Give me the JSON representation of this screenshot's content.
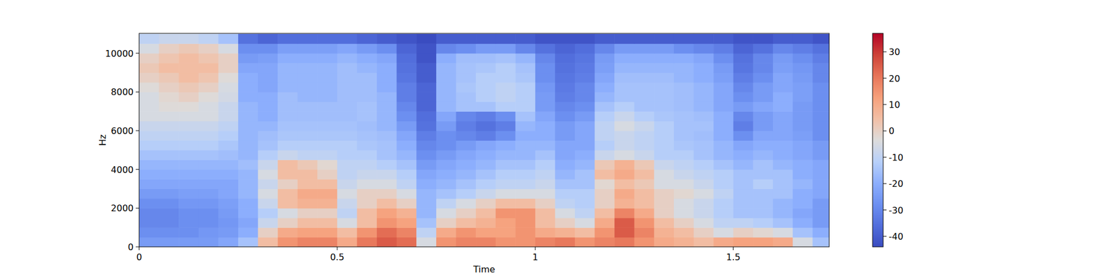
{
  "chart_data": {
    "type": "heatmap",
    "x_label": "Time",
    "y_label": "Hz",
    "xlim": [
      0,
      1.742
    ],
    "ylim": [
      0,
      11025
    ],
    "xticks": [
      0,
      0.5,
      1,
      1.5
    ],
    "yticks": [
      0,
      2000,
      4000,
      6000,
      8000,
      10000
    ],
    "zlim": [
      -44,
      37
    ],
    "zticks": [
      -40,
      -30,
      -20,
      -10,
      0,
      10,
      20,
      30
    ],
    "x": [
      0.025,
      0.075,
      0.125,
      0.175,
      0.225,
      0.275,
      0.325,
      0.375,
      0.425,
      0.475,
      0.525,
      0.575,
      0.625,
      0.675,
      0.725,
      0.775,
      0.825,
      0.875,
      0.925,
      0.975,
      1.025,
      1.075,
      1.125,
      1.175,
      1.225,
      1.275,
      1.325,
      1.375,
      1.425,
      1.475,
      1.525,
      1.575,
      1.625,
      1.675,
      1.725
    ],
    "y": [
      250,
      750,
      1250,
      1750,
      2250,
      2750,
      3250,
      3750,
      4250,
      4750,
      5250,
      5750,
      6250,
      6750,
      7250,
      7750,
      8250,
      8750,
      9250,
      9750,
      10250,
      10750
    ],
    "values": [
      [
        -25,
        -25,
        -25,
        -25,
        -22,
        -15,
        5,
        15,
        18,
        18,
        10,
        20,
        25,
        22,
        -5,
        15,
        18,
        18,
        15,
        15,
        18,
        20,
        15,
        18,
        20,
        15,
        10,
        8,
        5,
        10,
        12,
        12,
        10,
        -5,
        -15
      ],
      [
        -28,
        -28,
        -28,
        -26,
        -25,
        -20,
        0,
        10,
        12,
        12,
        5,
        15,
        22,
        18,
        -10,
        10,
        15,
        12,
        12,
        15,
        10,
        8,
        5,
        15,
        25,
        18,
        8,
        5,
        0,
        -5,
        0,
        -2,
        -5,
        -15,
        -20
      ],
      [
        -30,
        -30,
        -28,
        -28,
        -26,
        -22,
        -8,
        0,
        5,
        5,
        -5,
        5,
        15,
        12,
        -15,
        0,
        5,
        8,
        12,
        15,
        5,
        0,
        -5,
        10,
        25,
        15,
        5,
        0,
        -5,
        -10,
        -10,
        -12,
        -15,
        -20,
        -25
      ],
      [
        -30,
        -30,
        -28,
        -28,
        -25,
        -20,
        -12,
        -5,
        0,
        0,
        -10,
        5,
        12,
        8,
        -18,
        -5,
        0,
        5,
        15,
        15,
        5,
        -5,
        -10,
        5,
        18,
        10,
        0,
        -5,
        -8,
        -12,
        -15,
        -15,
        -18,
        -22,
        -25
      ],
      [
        -28,
        -28,
        -26,
        -26,
        -24,
        -20,
        -8,
        5,
        8,
        8,
        -8,
        0,
        5,
        0,
        -18,
        -10,
        -5,
        0,
        5,
        5,
        0,
        -10,
        -12,
        0,
        8,
        5,
        0,
        -5,
        -8,
        -12,
        -15,
        -15,
        -18,
        -20,
        -25
      ],
      [
        -25,
        -25,
        -24,
        -24,
        -22,
        -18,
        -5,
        5,
        10,
        10,
        -5,
        0,
        0,
        -5,
        -18,
        -15,
        -12,
        -8,
        -5,
        -5,
        -5,
        -12,
        -12,
        0,
        10,
        5,
        0,
        -2,
        -5,
        -10,
        -15,
        -15,
        -15,
        -20,
        -22
      ],
      [
        -22,
        -22,
        -22,
        -22,
        -22,
        -18,
        -8,
        0,
        5,
        5,
        -8,
        -5,
        -5,
        -10,
        -20,
        -18,
        -15,
        -12,
        -10,
        -10,
        -8,
        -15,
        -15,
        -2,
        5,
        2,
        -5,
        -5,
        -8,
        -12,
        -15,
        -12,
        -15,
        -18,
        -22
      ],
      [
        -20,
        -20,
        -20,
        -20,
        -20,
        -18,
        -5,
        5,
        5,
        0,
        -10,
        -8,
        -8,
        -12,
        -22,
        -20,
        -18,
        -15,
        -12,
        -12,
        -10,
        -18,
        -15,
        5,
        10,
        5,
        -5,
        -8,
        -10,
        -12,
        -15,
        -15,
        -15,
        -20,
        -22
      ],
      [
        -18,
        -18,
        -18,
        -18,
        -18,
        -16,
        -8,
        5,
        2,
        -2,
        -10,
        -10,
        -12,
        -15,
        -25,
        -22,
        -20,
        -18,
        -15,
        -15,
        -12,
        -20,
        -18,
        2,
        8,
        2,
        -8,
        -10,
        -12,
        -15,
        -18,
        -15,
        -18,
        -20,
        -22
      ],
      [
        -15,
        -15,
        -15,
        -15,
        -16,
        -18,
        -12,
        -8,
        -10,
        -10,
        -12,
        -12,
        -15,
        -18,
        -28,
        -25,
        -22,
        -20,
        -18,
        -18,
        -15,
        -22,
        -20,
        -8,
        -5,
        -8,
        -12,
        -12,
        -15,
        -18,
        -20,
        -18,
        -20,
        -22,
        -25
      ],
      [
        -12,
        -12,
        -12,
        -12,
        -14,
        -18,
        -15,
        -12,
        -12,
        -12,
        -12,
        -14,
        -15,
        -20,
        -30,
        -28,
        -25,
        -22,
        -20,
        -18,
        -18,
        -22,
        -22,
        -12,
        -8,
        -10,
        -12,
        -14,
        -15,
        -18,
        -22,
        -20,
        -20,
        -22,
        -25
      ],
      [
        -10,
        -10,
        -10,
        -10,
        -12,
        -18,
        -16,
        -14,
        -14,
        -14,
        -14,
        -15,
        -16,
        -22,
        -32,
        -28,
        -30,
        -32,
        -28,
        -20,
        -20,
        -25,
        -22,
        -10,
        -8,
        -10,
        -12,
        -15,
        -16,
        -20,
        -28,
        -22,
        -22,
        -24,
        -28
      ],
      [
        -8,
        -8,
        -8,
        -8,
        -10,
        -18,
        -18,
        -15,
        -15,
        -15,
        -15,
        -16,
        -18,
        -25,
        -35,
        -25,
        -32,
        -35,
        -32,
        -18,
        -20,
        -25,
        -22,
        -10,
        -5,
        -8,
        -12,
        -15,
        -15,
        -20,
        -32,
        -25,
        -22,
        -25,
        -28
      ],
      [
        -5,
        -5,
        -5,
        -5,
        -8,
        -18,
        -20,
        -16,
        -16,
        -16,
        -16,
        -15,
        -18,
        -28,
        -36,
        -22,
        -30,
        -32,
        -28,
        -15,
        -22,
        -28,
        -25,
        -12,
        -8,
        -12,
        -14,
        -15,
        -16,
        -20,
        -30,
        -25,
        -22,
        -25,
        -28
      ],
      [
        -5,
        -3,
        -3,
        -5,
        -8,
        -18,
        -20,
        -16,
        -16,
        -16,
        -16,
        -15,
        -18,
        -30,
        -38,
        -18,
        -15,
        -15,
        -12,
        -12,
        -25,
        -30,
        -28,
        -15,
        -12,
        -15,
        -15,
        -16,
        -18,
        -22,
        -25,
        -22,
        -20,
        -25,
        -28
      ],
      [
        -5,
        -2,
        0,
        -3,
        -6,
        -20,
        -20,
        -16,
        -18,
        -18,
        -16,
        -16,
        -18,
        -32,
        -38,
        -18,
        -15,
        -12,
        -10,
        -12,
        -25,
        -32,
        -30,
        -18,
        -15,
        -15,
        -15,
        -16,
        -18,
        -22,
        -28,
        -25,
        -20,
        -24,
        -28
      ],
      [
        -3,
        0,
        2,
        0,
        -5,
        -20,
        -22,
        -18,
        -18,
        -18,
        -16,
        -16,
        -20,
        -32,
        -38,
        -18,
        -14,
        -12,
        -10,
        -12,
        -26,
        -33,
        -30,
        -20,
        -15,
        -15,
        -15,
        -16,
        -18,
        -22,
        -30,
        -25,
        -22,
        -24,
        -28
      ],
      [
        0,
        2,
        5,
        3,
        -3,
        -20,
        -22,
        -18,
        -18,
        -18,
        -16,
        -16,
        -20,
        -34,
        -40,
        -18,
        -15,
        -12,
        -12,
        -14,
        -28,
        -34,
        -32,
        -22,
        -16,
        -16,
        -16,
        -18,
        -20,
        -24,
        -32,
        -28,
        -22,
        -25,
        -30
      ],
      [
        2,
        5,
        5,
        5,
        0,
        -22,
        -22,
        -18,
        -18,
        -18,
        -16,
        -18,
        -20,
        -35,
        -40,
        -18,
        -15,
        -14,
        -12,
        -15,
        -28,
        -35,
        -33,
        -24,
        -18,
        -18,
        -18,
        -18,
        -20,
        -25,
        -34,
        -30,
        -24,
        -26,
        -30
      ],
      [
        0,
        3,
        5,
        3,
        0,
        -25,
        -24,
        -20,
        -20,
        -20,
        -18,
        -20,
        -22,
        -36,
        -42,
        -20,
        -16,
        -16,
        -15,
        -18,
        -30,
        -36,
        -34,
        -25,
        -20,
        -20,
        -20,
        -20,
        -22,
        -28,
        -35,
        -30,
        -25,
        -28,
        -32
      ],
      [
        -5,
        0,
        2,
        0,
        -5,
        -28,
        -28,
        -24,
        -24,
        -24,
        -22,
        -25,
        -28,
        -38,
        -42,
        -30,
        -28,
        -25,
        -25,
        -30,
        -35,
        -38,
        -36,
        -30,
        -25,
        -25,
        -25,
        -28,
        -30,
        -32,
        -38,
        -35,
        -30,
        -32,
        -35
      ],
      [
        -10,
        -8,
        -8,
        -10,
        -15,
        -35,
        -38,
        -36,
        -36,
        -36,
        -36,
        -38,
        -40,
        -42,
        -44,
        -40,
        -40,
        -40,
        -40,
        -40,
        -42,
        -42,
        -42,
        -40,
        -40,
        -40,
        -40,
        -40,
        -40,
        -40,
        -42,
        -42,
        -40,
        -40,
        -42
      ]
    ]
  }
}
